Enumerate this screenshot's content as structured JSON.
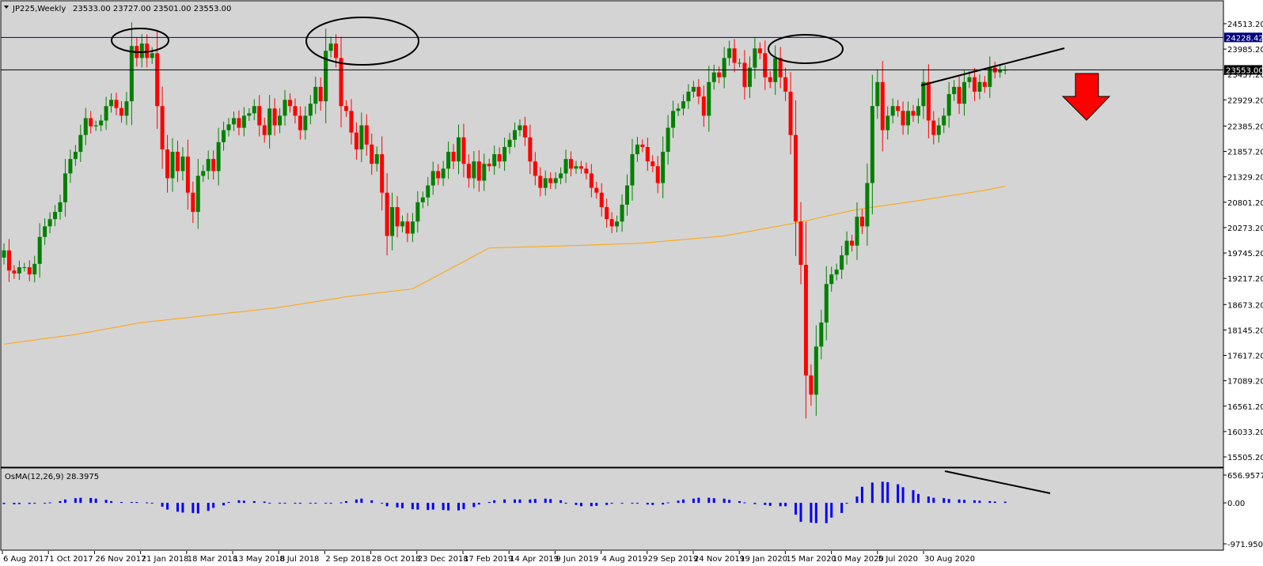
{
  "header": {
    "symbol_label": "JP225,Weekly",
    "ohlc_label": "23533.00 23727.00 23501.00 23553.00"
  },
  "indicator": {
    "label": "OsMA(12,26,9) 28.3975"
  },
  "colors": {
    "up": "#008000",
    "down": "#ff0000",
    "ma": "#ffa500",
    "resistance": "#000080",
    "osma": "#0000ff",
    "arrow": "#ff0000",
    "plot_bg": "#d4d4d4"
  },
  "chart_data": [
    {
      "type": "candlestick",
      "timeframe": "Weekly",
      "ylim": [
        15505.2,
        24513.2
      ],
      "price_axis_ticks": [
        "24513.20",
        "23985.20",
        "23457.20",
        "22929.20",
        "22385.20",
        "21857.20",
        "21329.20",
        "20801.20",
        "20273.20",
        "19745.20",
        "19217.20",
        "18673.20",
        "18145.20",
        "17617.20",
        "17089.20",
        "16561.20",
        "16033.20",
        "15505.20"
      ],
      "price_markers": {
        "resistance": "24228.42",
        "current": "23553.00"
      },
      "x_labels": [
        "6 Aug 2017",
        "1 Oct 2017",
        "26 Nov 2017",
        "21 Jan 2018",
        "18 Mar 2018",
        "13 May 2018",
        "8 Jul 2018",
        "2 Sep 2018",
        "28 Oct 2018",
        "23 Dec 2018",
        "17 Feb 2019",
        "14 Apr 2019",
        "9 Jun 2019",
        "4 Aug 2019",
        "29 Sep 2019",
        "24 Nov 2019",
        "19 Jan 2020",
        "15 Mar 2020",
        "10 May 2020",
        "5 Jul 2020",
        "30 Aug 2020"
      ],
      "closes": [
        19800,
        19380,
        19320,
        19450,
        19450,
        19300,
        19520,
        20080,
        20300,
        20450,
        20600,
        20800,
        21400,
        21700,
        21850,
        22200,
        22550,
        22380,
        22400,
        22500,
        22800,
        22930,
        22760,
        22600,
        22900,
        24050,
        23800,
        24100,
        23800,
        23900,
        22800,
        21900,
        21300,
        21850,
        21450,
        21750,
        21000,
        20600,
        21350,
        21450,
        21700,
        21450,
        22050,
        22300,
        22420,
        22550,
        22350,
        22600,
        22650,
        22800,
        22400,
        22200,
        22750,
        22400,
        22600,
        22930,
        22800,
        22600,
        22300,
        22600,
        22850,
        23200,
        22900,
        23950,
        24100,
        23800,
        22800,
        22700,
        22250,
        21900,
        22400,
        22000,
        21600,
        21800,
        21000,
        20100,
        20700,
        20300,
        20400,
        20150,
        20400,
        20800,
        20900,
        21150,
        21450,
        21300,
        21500,
        21850,
        21650,
        22150,
        21600,
        21300,
        21650,
        21250,
        21600,
        21550,
        21800,
        21650,
        21950,
        22100,
        22300,
        22400,
        22150,
        21650,
        21350,
        21100,
        21300,
        21200,
        21300,
        21400,
        21700,
        21500,
        21550,
        21500,
        21400,
        21100,
        21000,
        20700,
        20450,
        20300,
        20400,
        20750,
        21150,
        21800,
        22000,
        21950,
        21650,
        21550,
        21200,
        21850,
        22350,
        22700,
        22750,
        22900,
        23100,
        23200,
        23000,
        22600,
        23300,
        23500,
        23400,
        23800,
        24000,
        23700,
        23700,
        23200,
        23600,
        24000,
        23900,
        23400,
        23300,
        23800,
        23400,
        23100,
        22200,
        20400,
        19500,
        17200,
        16800,
        17800,
        18300,
        19100,
        19300,
        19400,
        19700,
        20000,
        19900,
        20500,
        20300,
        21200,
        22800,
        23300,
        22300,
        22600,
        22800,
        22700,
        22400,
        22700,
        22600,
        22800,
        23300,
        22500,
        22200,
        22400,
        22600,
        23050,
        23200,
        22850,
        23300,
        23400,
        23100,
        23300,
        23200,
        23600,
        23500,
        23550,
        23553
      ],
      "ma_100": [
        17850,
        null,
        null,
        null,
        null,
        null,
        null,
        null,
        null,
        null,
        null,
        null,
        null,
        null,
        18050,
        null,
        null,
        null,
        null,
        null,
        null,
        null,
        null,
        null,
        null,
        null,
        null,
        18300,
        null,
        null,
        null,
        null,
        null,
        null,
        null,
        null,
        null,
        null,
        null,
        null,
        18450,
        null,
        null,
        null,
        null,
        null,
        null,
        null,
        null,
        null,
        null,
        null,
        null,
        18600,
        null,
        null,
        null,
        null,
        null,
        null,
        null,
        null,
        null,
        null,
        null,
        null,
        null,
        null,
        18850,
        null,
        null,
        null,
        null,
        null,
        null,
        null,
        null,
        null,
        null,
        null,
        19000,
        null,
        null,
        null,
        null,
        null,
        null,
        null,
        null,
        null,
        null,
        null,
        null,
        null,
        null,
        19850,
        null,
        null,
        null,
        null,
        null,
        null,
        null,
        null,
        null,
        null,
        null,
        null,
        null,
        null,
        null,
        null,
        19900,
        null,
        null,
        null,
        null,
        null,
        null,
        null,
        null,
        null,
        null,
        null,
        null,
        19950,
        null,
        null,
        null,
        null,
        null,
        null,
        null,
        null,
        null,
        null,
        null,
        null,
        null,
        null,
        null,
        20100,
        null,
        null,
        null,
        null,
        null,
        null,
        null,
        null,
        null,
        null,
        null,
        null,
        20350,
        null,
        null,
        null,
        null,
        null,
        null,
        null,
        null,
        null,
        null,
        null,
        null,
        20650,
        null,
        null,
        null,
        null,
        null,
        null,
        null,
        null,
        null,
        null,
        null,
        null,
        20850,
        null,
        null,
        null,
        null,
        null,
        null,
        null,
        null,
        null,
        null,
        null,
        21050,
        null,
        null,
        null,
        null,
        null,
        null,
        null,
        null,
        null,
        null,
        null,
        21300,
        null,
        null,
        null,
        null,
        null,
        null,
        null,
        null,
        21540
      ],
      "osma": [
        -30,
        -35,
        -30,
        -25,
        -20,
        -10,
        10,
        40,
        80,
        110,
        120,
        115,
        100,
        70,
        40,
        20,
        20,
        20,
        10,
        -10,
        -90,
        -160,
        -210,
        -230,
        -240,
        -250,
        -190,
        -120,
        -60,
        20,
        60,
        50,
        40,
        30,
        0,
        -10,
        -10,
        -20,
        -20,
        -10,
        -10,
        -10,
        0,
        10,
        40,
        80,
        100,
        60,
        0,
        -80,
        -110,
        -130,
        -150,
        -160,
        -170,
        -160,
        -170,
        -180,
        -180,
        -150,
        -100,
        -40,
        20,
        60,
        80,
        80,
        80,
        80,
        90,
        100,
        90,
        60,
        0,
        -50,
        -80,
        -80,
        -70,
        -50,
        -20,
        -10,
        0,
        -20,
        -40,
        -50,
        -40,
        10,
        50,
        80,
        100,
        120,
        120,
        110,
        100,
        70,
        40,
        10,
        -30,
        -50,
        -70,
        -80,
        -80,
        -280,
        -450,
        -470,
        -480,
        -480,
        -350,
        -240,
        -20,
        150,
        380,
        480,
        500,
        490,
        440,
        370,
        300,
        210,
        150,
        120,
        110,
        90,
        80,
        70,
        60,
        50,
        40,
        30,
        28.3975
      ],
      "osma_ylim": [
        -971.9508,
        656.9577
      ],
      "osma_axis_ticks": [
        "656.9577",
        "0.00",
        "-971.9508"
      ]
    }
  ]
}
